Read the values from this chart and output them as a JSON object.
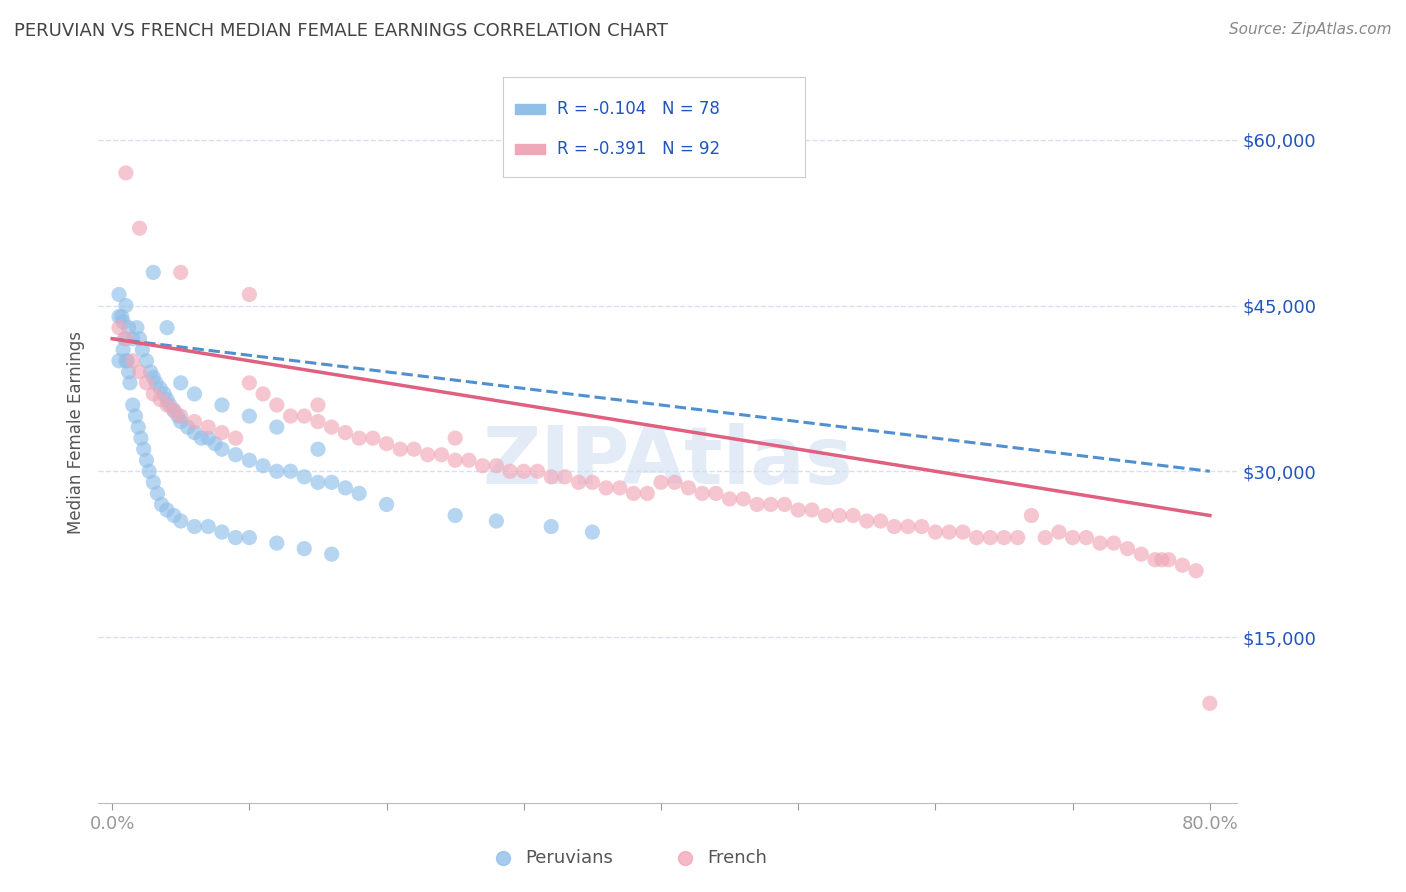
{
  "title": "PERUVIAN VS FRENCH MEDIAN FEMALE EARNINGS CORRELATION CHART",
  "source": "Source: ZipAtlas.com",
  "ylabel": "Median Female Earnings",
  "xlim": [
    -0.01,
    0.82
  ],
  "ylim": [
    0,
    67000
  ],
  "yticks": [
    15000,
    30000,
    45000,
    60000
  ],
  "ytick_labels": [
    "$15,000",
    "$30,000",
    "$45,000",
    "$60,000"
  ],
  "xticks": [
    0.0,
    0.1,
    0.2,
    0.3,
    0.4,
    0.5,
    0.6,
    0.7,
    0.8
  ],
  "xtick_labels": [
    "0.0%",
    "",
    "",
    "",
    "",
    "",
    "",
    "",
    "80.0%"
  ],
  "peruvian_color": "#90bfe8",
  "french_color": "#f0a8b8",
  "peruvian_R": -0.104,
  "peruvian_N": 78,
  "french_R": -0.391,
  "french_N": 92,
  "trend_blue_color": "#5090d0",
  "trend_pink_color": "#e06080",
  "background_color": "#ffffff",
  "grid_color": "#d8e0f0",
  "axis_label_color": "#2255bb",
  "watermark_color": "#d0dff0",
  "peruvian_points_x": [
    0.005,
    0.008,
    0.01,
    0.012,
    0.015,
    0.005,
    0.008,
    0.01,
    0.012,
    0.018,
    0.02,
    0.022,
    0.025,
    0.028,
    0.03,
    0.032,
    0.035,
    0.038,
    0.04,
    0.042,
    0.045,
    0.048,
    0.05,
    0.055,
    0.06,
    0.065,
    0.07,
    0.075,
    0.08,
    0.09,
    0.1,
    0.11,
    0.12,
    0.13,
    0.14,
    0.15,
    0.16,
    0.17,
    0.005,
    0.007,
    0.009,
    0.011,
    0.013,
    0.015,
    0.017,
    0.019,
    0.021,
    0.023,
    0.025,
    0.027,
    0.03,
    0.033,
    0.036,
    0.04,
    0.045,
    0.05,
    0.06,
    0.07,
    0.08,
    0.09,
    0.1,
    0.12,
    0.14,
    0.16,
    0.05,
    0.06,
    0.08,
    0.1,
    0.12,
    0.15,
    0.03,
    0.04,
    0.18,
    0.2,
    0.25,
    0.28,
    0.32,
    0.35
  ],
  "peruvian_points_y": [
    44000,
    43500,
    45000,
    43000,
    42000,
    40000,
    41000,
    40000,
    39000,
    43000,
    42000,
    41000,
    40000,
    39000,
    38500,
    38000,
    37500,
    37000,
    36500,
    36000,
    35500,
    35000,
    34500,
    34000,
    33500,
    33000,
    33000,
    32500,
    32000,
    31500,
    31000,
    30500,
    30000,
    30000,
    29500,
    29000,
    29000,
    28500,
    46000,
    44000,
    42000,
    40000,
    38000,
    36000,
    35000,
    34000,
    33000,
    32000,
    31000,
    30000,
    29000,
    28000,
    27000,
    26500,
    26000,
    25500,
    25000,
    25000,
    24500,
    24000,
    24000,
    23500,
    23000,
    22500,
    38000,
    37000,
    36000,
    35000,
    34000,
    32000,
    48000,
    43000,
    28000,
    27000,
    26000,
    25500,
    25000,
    24500
  ],
  "french_points_x": [
    0.005,
    0.01,
    0.015,
    0.02,
    0.025,
    0.03,
    0.035,
    0.04,
    0.045,
    0.05,
    0.06,
    0.07,
    0.08,
    0.09,
    0.1,
    0.11,
    0.12,
    0.13,
    0.14,
    0.15,
    0.16,
    0.17,
    0.18,
    0.19,
    0.2,
    0.21,
    0.22,
    0.23,
    0.24,
    0.25,
    0.26,
    0.27,
    0.28,
    0.29,
    0.3,
    0.31,
    0.32,
    0.33,
    0.34,
    0.35,
    0.36,
    0.37,
    0.38,
    0.39,
    0.4,
    0.41,
    0.42,
    0.43,
    0.44,
    0.45,
    0.46,
    0.47,
    0.48,
    0.49,
    0.5,
    0.51,
    0.52,
    0.53,
    0.54,
    0.55,
    0.56,
    0.57,
    0.58,
    0.59,
    0.6,
    0.61,
    0.62,
    0.63,
    0.64,
    0.65,
    0.66,
    0.67,
    0.68,
    0.69,
    0.7,
    0.71,
    0.72,
    0.73,
    0.74,
    0.75,
    0.76,
    0.765,
    0.77,
    0.78,
    0.79,
    0.8,
    0.01,
    0.02,
    0.05,
    0.1,
    0.15,
    0.25
  ],
  "french_points_y": [
    43000,
    42000,
    40000,
    39000,
    38000,
    37000,
    36500,
    36000,
    35500,
    35000,
    34500,
    34000,
    33500,
    33000,
    38000,
    37000,
    36000,
    35000,
    35000,
    34500,
    34000,
    33500,
    33000,
    33000,
    32500,
    32000,
    32000,
    31500,
    31500,
    31000,
    31000,
    30500,
    30500,
    30000,
    30000,
    30000,
    29500,
    29500,
    29000,
    29000,
    28500,
    28500,
    28000,
    28000,
    29000,
    29000,
    28500,
    28000,
    28000,
    27500,
    27500,
    27000,
    27000,
    27000,
    26500,
    26500,
    26000,
    26000,
    26000,
    25500,
    25500,
    25000,
    25000,
    25000,
    24500,
    24500,
    24500,
    24000,
    24000,
    24000,
    24000,
    26000,
    24000,
    24500,
    24000,
    24000,
    23500,
    23500,
    23000,
    22500,
    22000,
    22000,
    22000,
    21500,
    21000,
    9000,
    57000,
    52000,
    48000,
    46000,
    36000,
    33000
  ],
  "trend_peruvian_x0": 0.0,
  "trend_peruvian_y0": 42000,
  "trend_peruvian_x1": 0.8,
  "trend_peruvian_y1": 30000,
  "trend_french_x0": 0.0,
  "trend_french_y0": 42000,
  "trend_french_x1": 0.8,
  "trend_french_y1": 26000
}
